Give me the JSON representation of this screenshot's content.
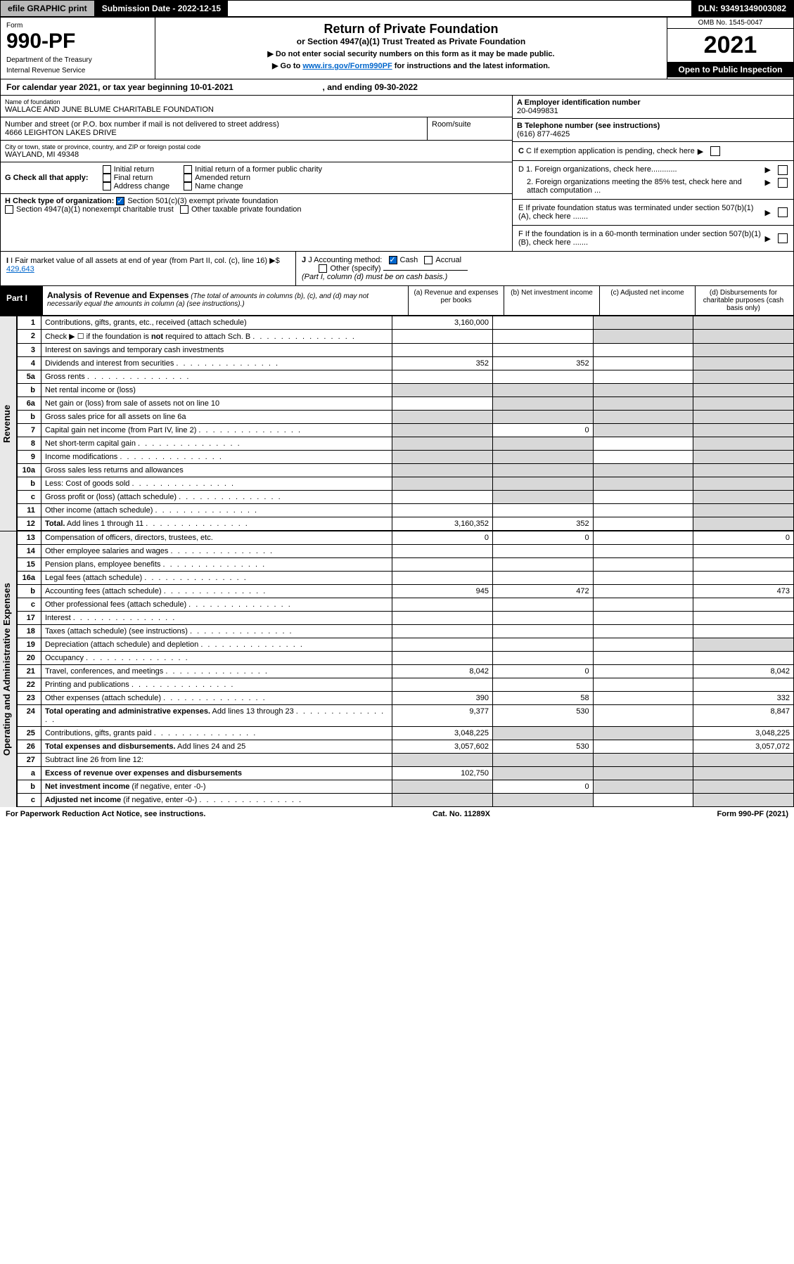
{
  "topbar": {
    "efile": "efile GRAPHIC print",
    "subdate_label": "Submission Date - ",
    "subdate": "2022-12-15",
    "dln_label": "DLN: ",
    "dln": "93491349003082"
  },
  "header": {
    "form_word": "Form",
    "form_num": "990-PF",
    "dept": "Department of the Treasury",
    "irs": "Internal Revenue Service",
    "title": "Return of Private Foundation",
    "subtitle": "or Section 4947(a)(1) Trust Treated as Private Foundation",
    "note1": "▶ Do not enter social security numbers on this form as it may be made public.",
    "note2_pre": "▶ Go to ",
    "note2_link": "www.irs.gov/Form990PF",
    "note2_post": " for instructions and the latest information.",
    "omb": "OMB No. 1545-0047",
    "year": "2021",
    "open": "Open to Public Inspection"
  },
  "calrow": {
    "pre": "For calendar year 2021, or tax year beginning ",
    "begin": "10-01-2021",
    "mid": ", and ending ",
    "end": "09-30-2022"
  },
  "info": {
    "name_lbl": "Name of foundation",
    "name": "WALLACE AND JUNE BLUME CHARITABLE FOUNDATION",
    "addr_lbl": "Number and street (or P.O. box number if mail is not delivered to street address)",
    "addr": "4666 LEIGHTON LAKES DRIVE",
    "room_lbl": "Room/suite",
    "city_lbl": "City or town, state or province, country, and ZIP or foreign postal code",
    "city": "WAYLAND, MI  49348",
    "a_lbl": "A Employer identification number",
    "a_val": "20-0499831",
    "b_lbl": "B Telephone number (see instructions)",
    "b_val": "(616) 877-4625",
    "c_lbl": "C If exemption application is pending, check here",
    "d1": "D 1. Foreign organizations, check here............",
    "d2": "2. Foreign organizations meeting the 85% test, check here and attach computation ...",
    "e_lbl": "E  If private foundation status was terminated under section 507(b)(1)(A), check here .......",
    "f_lbl": "F  If the foundation is in a 60-month termination under section 507(b)(1)(B), check here .......",
    "g_lbl": "G Check all that apply:",
    "g_opts": [
      "Initial return",
      "Final return",
      "Address change",
      "Initial return of a former public charity",
      "Amended return",
      "Name change"
    ],
    "h_lbl": "H Check type of organization:",
    "h1": "Section 501(c)(3) exempt private foundation",
    "h2": "Section 4947(a)(1) nonexempt charitable trust",
    "h3": "Other taxable private foundation",
    "i_lbl": "I Fair market value of all assets at end of year (from Part II, col. (c), line 16)",
    "i_val": "429,643",
    "j_lbl": "J Accounting method:",
    "j1": "Cash",
    "j2": "Accrual",
    "j3": "Other (specify)",
    "j_note": "(Part I, column (d) must be on cash basis.)"
  },
  "part1": {
    "label": "Part I",
    "title": "Analysis of Revenue and Expenses",
    "note": "(The total of amounts in columns (b), (c), and (d) may not necessarily equal the amounts in column (a) (see instructions).)",
    "col_a": "(a)   Revenue and expenses per books",
    "col_b": "(b)   Net investment income",
    "col_c": "(c)   Adjusted net income",
    "col_d": "(d)   Disbursements for charitable purposes (cash basis only)"
  },
  "sections": {
    "revenue": "Revenue",
    "expenses": "Operating and Administrative Expenses"
  },
  "rows": [
    {
      "n": "1",
      "d": "Contributions, gifts, grants, etc., received (attach schedule)",
      "a": "3,160,000",
      "b": "",
      "c_g": true,
      "d_g": true
    },
    {
      "n": "2",
      "d": "Check ▶ ☐ if the foundation is <b>not</b> required to attach Sch. B",
      "a": "",
      "b": "",
      "c_g": true,
      "d_g": true,
      "dots": true
    },
    {
      "n": "3",
      "d": "Interest on savings and temporary cash investments",
      "a": "",
      "b": "",
      "d_g": true
    },
    {
      "n": "4",
      "d": "Dividends and interest from securities",
      "a": "352",
      "b": "352",
      "d_g": true,
      "dots": true
    },
    {
      "n": "5a",
      "d": "Gross rents",
      "a": "",
      "b": "",
      "d_g": true,
      "dots": true
    },
    {
      "n": "b",
      "d": "Net rental income or (loss)",
      "a_g": true,
      "b_g": true,
      "c_g": true,
      "d_g": true,
      "inlinebox": true
    },
    {
      "n": "6a",
      "d": "Net gain or (loss) from sale of assets not on line 10",
      "a": "",
      "b_g": true,
      "c_g": true,
      "d_g": true
    },
    {
      "n": "b",
      "d": "Gross sales price for all assets on line 6a",
      "a_g": true,
      "b_g": true,
      "c_g": true,
      "d_g": true,
      "inlinebox": true
    },
    {
      "n": "7",
      "d": "Capital gain net income (from Part IV, line 2)",
      "a_g": true,
      "b": "0",
      "c_g": true,
      "d_g": true,
      "dots": true
    },
    {
      "n": "8",
      "d": "Net short-term capital gain",
      "a_g": true,
      "b_g": true,
      "d_g": true,
      "dots": true
    },
    {
      "n": "9",
      "d": "Income modifications",
      "a_g": true,
      "b_g": true,
      "d_g": true,
      "dots": true
    },
    {
      "n": "10a",
      "d": "Gross sales less returns and allowances",
      "a_g": true,
      "b_g": true,
      "c_g": true,
      "d_g": true,
      "inlinebox": true
    },
    {
      "n": "b",
      "d": "Less: Cost of goods sold",
      "a_g": true,
      "b_g": true,
      "c_g": true,
      "d_g": true,
      "inlinebox": true,
      "dots": true
    },
    {
      "n": "c",
      "d": "Gross profit or (loss) (attach schedule)",
      "a": "",
      "b_g": true,
      "d_g": true,
      "dots": true
    },
    {
      "n": "11",
      "d": "Other income (attach schedule)",
      "a": "",
      "b": "",
      "d_g": true,
      "dots": true
    },
    {
      "n": "12",
      "d": "<b>Total.</b> Add lines 1 through 11",
      "a": "3,160,352",
      "b": "352",
      "d_g": true,
      "dots": true
    }
  ],
  "rows2": [
    {
      "n": "13",
      "d": "Compensation of officers, directors, trustees, etc.",
      "a": "0",
      "b": "0",
      "c": "",
      "dd": "0"
    },
    {
      "n": "14",
      "d": "Other employee salaries and wages",
      "a": "",
      "b": "",
      "c": "",
      "dd": "",
      "dots": true
    },
    {
      "n": "15",
      "d": "Pension plans, employee benefits",
      "a": "",
      "b": "",
      "c": "",
      "dd": "",
      "dots": true
    },
    {
      "n": "16a",
      "d": "Legal fees (attach schedule)",
      "a": "",
      "b": "",
      "c": "",
      "dd": "",
      "dots": true
    },
    {
      "n": "b",
      "d": "Accounting fees (attach schedule)",
      "a": "945",
      "b": "472",
      "c": "",
      "dd": "473",
      "dots": true
    },
    {
      "n": "c",
      "d": "Other professional fees (attach schedule)",
      "a": "",
      "b": "",
      "c": "",
      "dd": "",
      "dots": true
    },
    {
      "n": "17",
      "d": "Interest",
      "a": "",
      "b": "",
      "c": "",
      "dd": "",
      "dots": true
    },
    {
      "n": "18",
      "d": "Taxes (attach schedule) (see instructions)",
      "a": "",
      "b": "",
      "c": "",
      "dd": "",
      "dots": true
    },
    {
      "n": "19",
      "d": "Depreciation (attach schedule) and depletion",
      "a": "",
      "b": "",
      "c": "",
      "d_g": true,
      "dots": true
    },
    {
      "n": "20",
      "d": "Occupancy",
      "a": "",
      "b": "",
      "c": "",
      "dd": "",
      "dots": true
    },
    {
      "n": "21",
      "d": "Travel, conferences, and meetings",
      "a": "8,042",
      "b": "0",
      "c": "",
      "dd": "8,042",
      "dots": true
    },
    {
      "n": "22",
      "d": "Printing and publications",
      "a": "",
      "b": "",
      "c": "",
      "dd": "",
      "dots": true
    },
    {
      "n": "23",
      "d": "Other expenses (attach schedule)",
      "a": "390",
      "b": "58",
      "c": "",
      "dd": "332",
      "dots": true
    },
    {
      "n": "24",
      "d": "<b>Total operating and administrative expenses.</b> Add lines 13 through 23",
      "a": "9,377",
      "b": "530",
      "c": "",
      "dd": "8,847",
      "dots": true
    },
    {
      "n": "25",
      "d": "Contributions, gifts, grants paid",
      "a": "3,048,225",
      "b_g": true,
      "c_g": true,
      "dd": "3,048,225",
      "dots": true
    },
    {
      "n": "26",
      "d": "<b>Total expenses and disbursements.</b> Add lines 24 and 25",
      "a": "3,057,602",
      "b": "530",
      "c": "",
      "dd": "3,057,072"
    },
    {
      "n": "27",
      "d": "Subtract line 26 from line 12:",
      "a_g": true,
      "b_g": true,
      "c_g": true,
      "d_g": true
    },
    {
      "n": "a",
      "d": "<b>Excess of revenue over expenses and disbursements</b>",
      "a": "102,750",
      "b_g": true,
      "c_g": true,
      "d_g": true
    },
    {
      "n": "b",
      "d": "<b>Net investment income</b> (if negative, enter -0-)",
      "a_g": true,
      "b": "0",
      "c_g": true,
      "d_g": true
    },
    {
      "n": "c",
      "d": "<b>Adjusted net income</b> (if negative, enter -0-)",
      "a_g": true,
      "b_g": true,
      "c": "",
      "d_g": true,
      "dots": true
    }
  ],
  "footer": {
    "left": "For Paperwork Reduction Act Notice, see instructions.",
    "mid": "Cat. No. 11289X",
    "right": "Form 990-PF (2021)"
  }
}
